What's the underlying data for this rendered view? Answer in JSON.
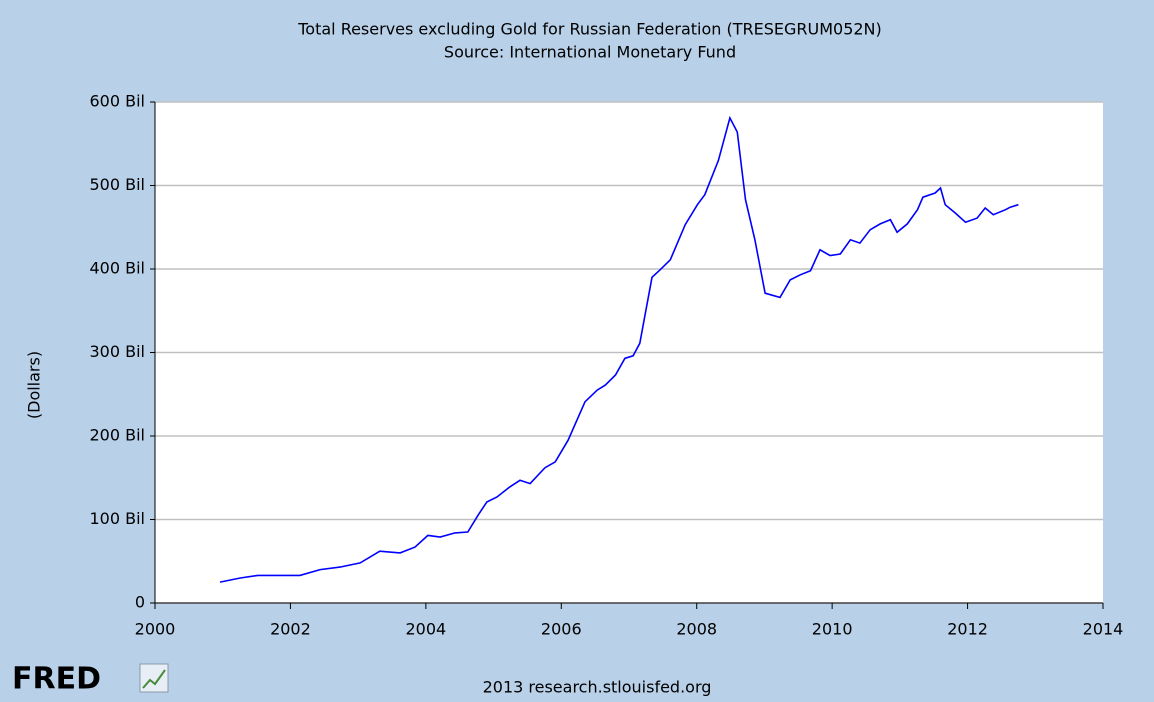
{
  "chart_data": {
    "type": "line",
    "title": "Total Reserves excluding Gold for Russian Federation (TRESEGRUM052N)",
    "subtitle": "Source: International Monetary Fund",
    "y_label": "(Dollars)",
    "credit": "2013 research.stlouisfed.org",
    "logo": "FRED",
    "x": [
      2000.96,
      2001.26,
      2001.52,
      2002.14,
      2002.44,
      2002.73,
      2003.03,
      2003.32,
      2003.62,
      2003.84,
      2004.03,
      2004.21,
      2004.43,
      2004.62,
      2004.77,
      2004.9,
      2005.05,
      2005.24,
      2005.39,
      2005.54,
      2005.76,
      2005.91,
      2006.1,
      2006.35,
      2006.53,
      2006.65,
      2006.8,
      2006.94,
      2007.06,
      2007.16,
      2007.34,
      2007.46,
      2007.61,
      2007.83,
      2008.01,
      2008.12,
      2008.32,
      2008.49,
      2008.6,
      2008.72,
      2008.86,
      2009.01,
      2009.23,
      2009.38,
      2009.53,
      2009.68,
      2009.82,
      2009.97,
      2010.12,
      2010.27,
      2010.41,
      2010.56,
      2010.71,
      2010.86,
      2010.96,
      2011.11,
      2011.26,
      2011.34,
      2011.52,
      2011.6,
      2011.67,
      2011.82,
      2011.97,
      2012.14,
      2012.26,
      2012.38,
      2012.56,
      2012.63,
      2012.75
    ],
    "values": [
      25,
      30,
      33,
      33,
      40,
      43,
      48,
      62,
      60,
      67,
      81,
      79,
      84,
      85,
      105,
      121,
      127,
      139,
      147,
      143,
      162,
      169,
      195,
      241,
      255,
      261,
      273,
      293,
      296,
      311,
      390,
      399,
      411,
      453,
      477,
      489,
      530,
      581,
      564,
      483,
      435,
      371,
      366,
      387,
      393,
      398,
      423,
      416,
      418,
      435,
      431,
      447,
      454,
      459,
      444,
      454,
      471,
      486,
      491,
      497,
      477,
      467,
      456,
      461,
      473,
      465,
      471,
      474,
      477
    ],
    "color": "#0000ff",
    "xlim": [
      2000,
      2014
    ],
    "xticks": [
      2000,
      2002,
      2004,
      2006,
      2008,
      2010,
      2012,
      2014
    ],
    "ylim": [
      0,
      600
    ],
    "yticks": [
      0,
      {
        "value": 100,
        "label": "100 Bil"
      },
      {
        "value": 200,
        "label": "200 Bil"
      },
      {
        "value": 300,
        "label": "300 Bil"
      },
      {
        "value": 400,
        "label": "400 Bil"
      },
      {
        "value": 500,
        "label": "500 Bil"
      },
      {
        "value": 600,
        "label": "600 Bil"
      }
    ],
    "grid": true
  }
}
